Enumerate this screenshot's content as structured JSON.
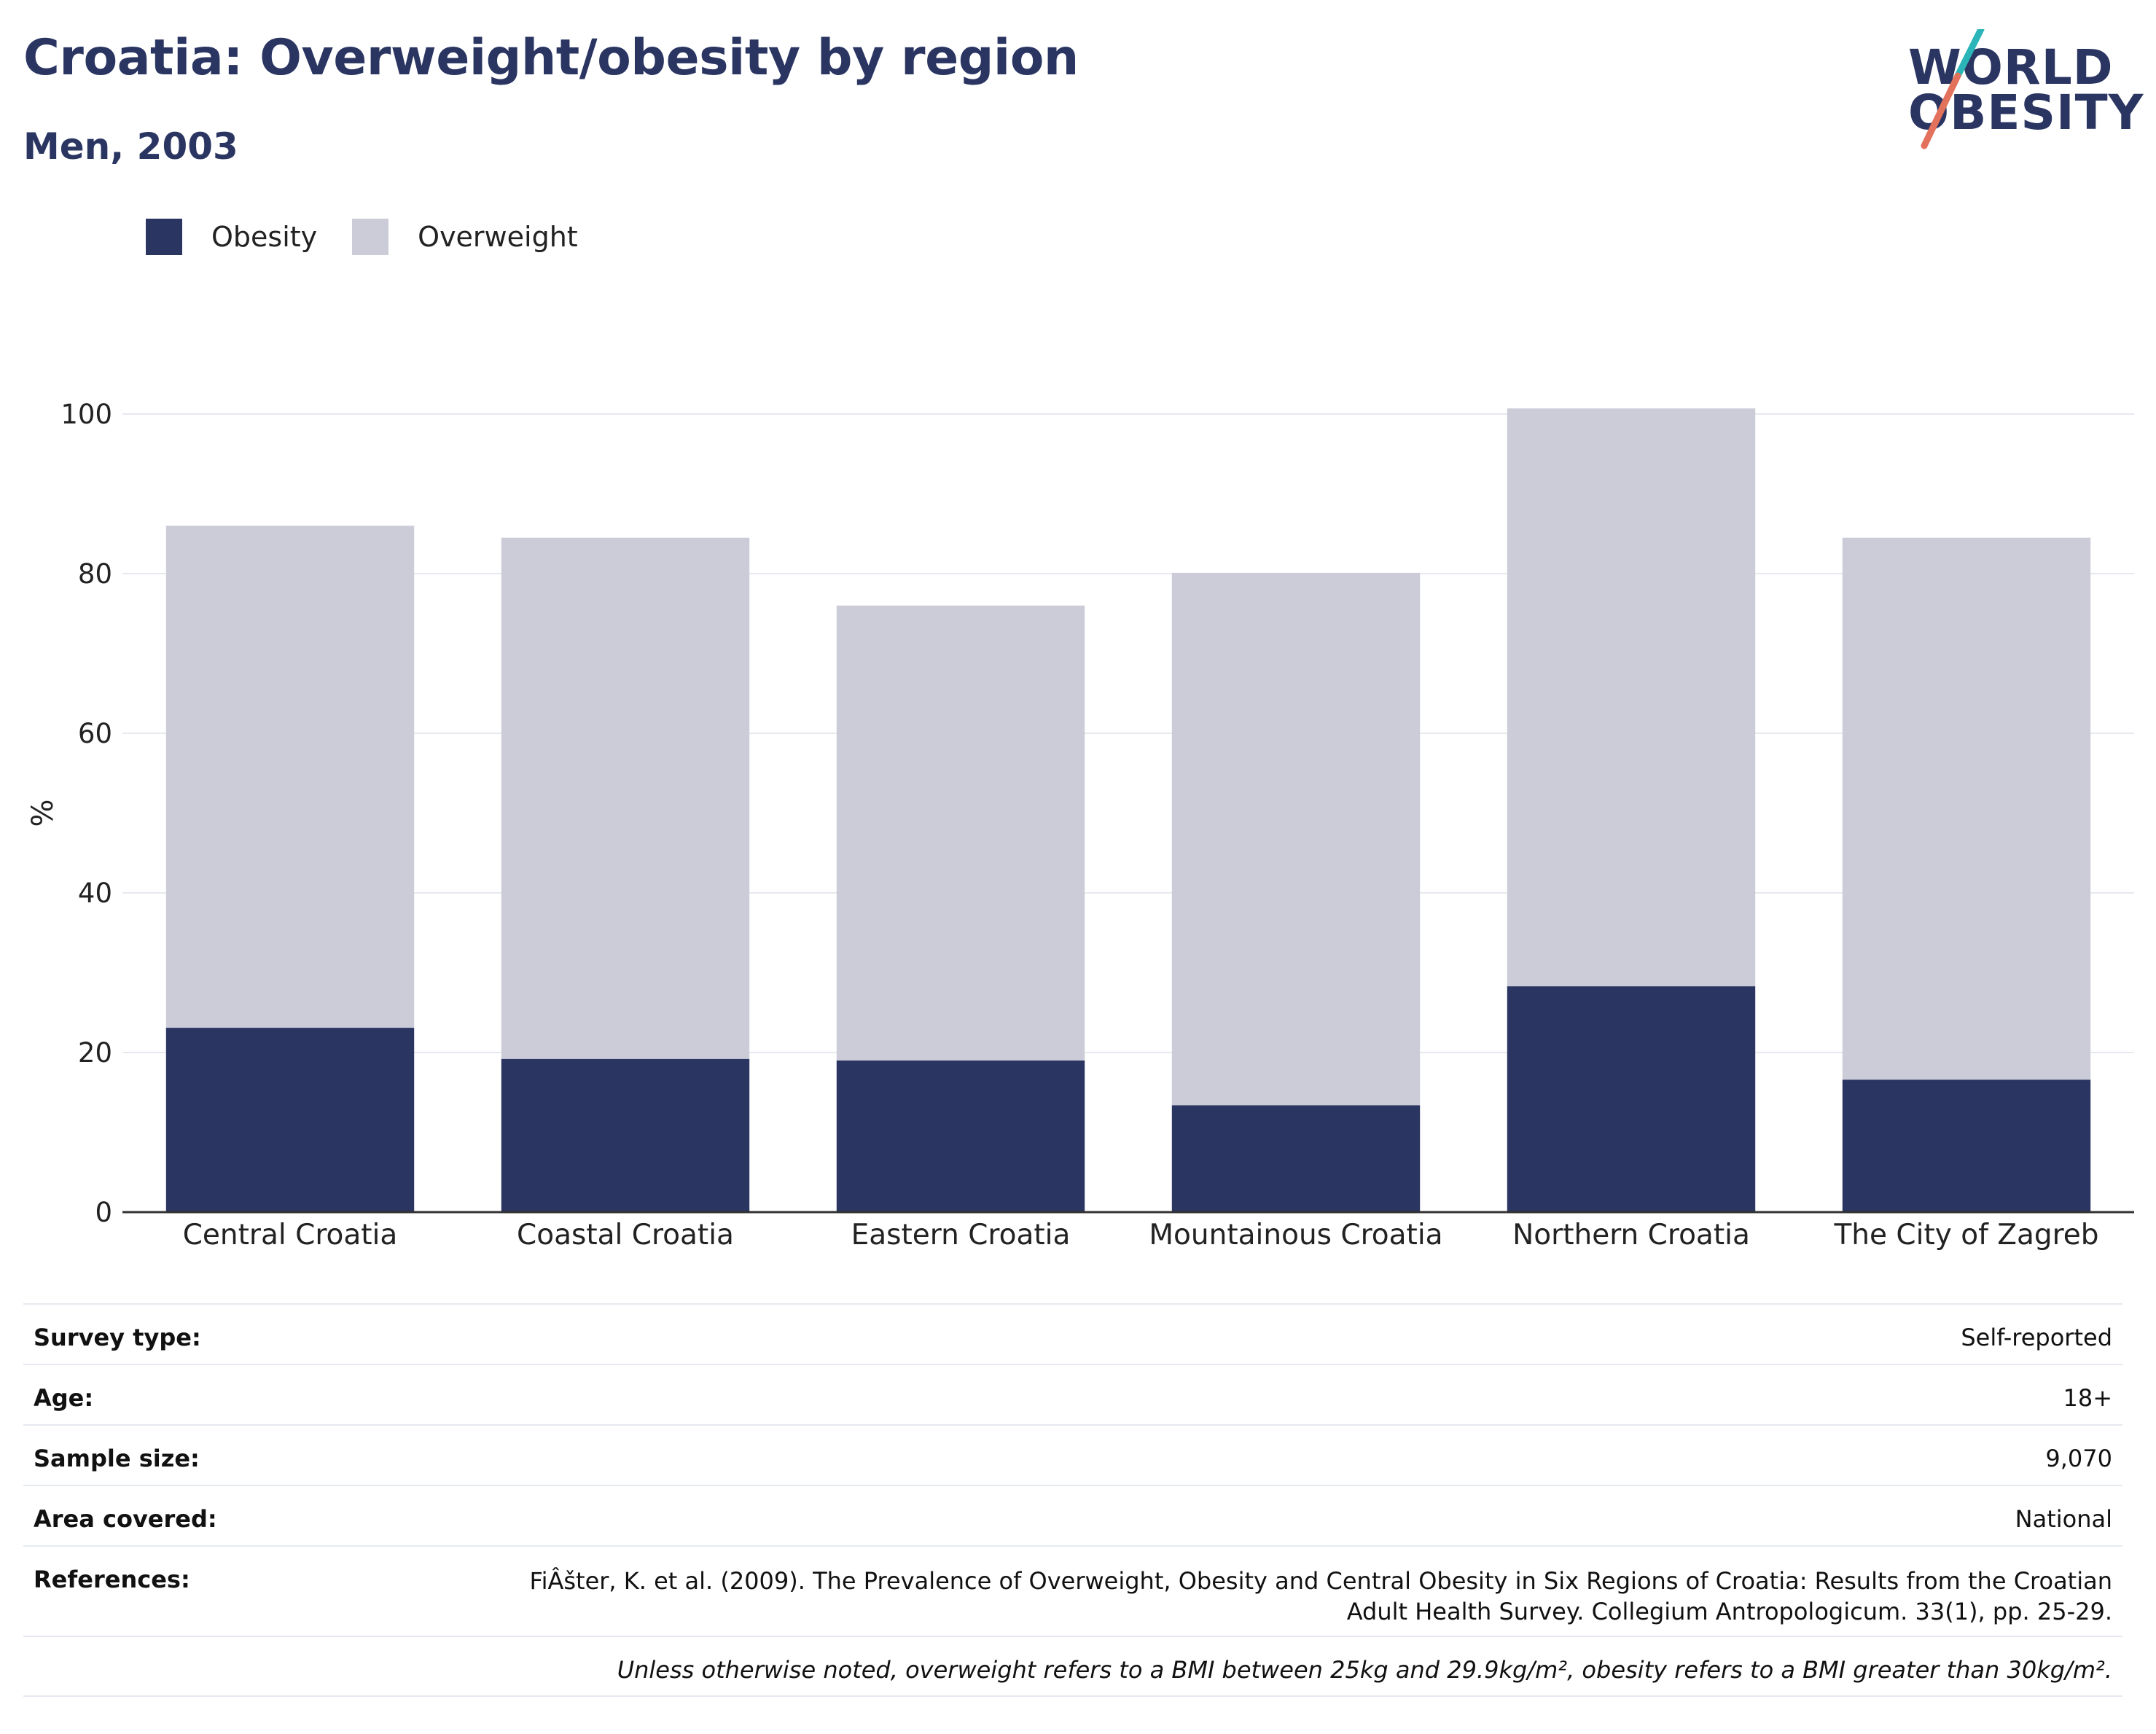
{
  "header": {
    "title": "Croatia: Overweight/obesity by region",
    "subtitle": "Men, 2003"
  },
  "logo": {
    "line1": "WORLD",
    "line2": "OBESITY",
    "colors": {
      "text": "#2a3562",
      "slash_top": "#2bb5b8",
      "slash_bottom": "#e2725b"
    }
  },
  "legend": [
    {
      "label": "Obesity",
      "color": "#2a3562"
    },
    {
      "label": "Overweight",
      "color": "#cbccd8"
    }
  ],
  "chart_data": {
    "type": "bar",
    "stacked": true,
    "categories": [
      "Central Croatia",
      "Coastal Croatia",
      "Eastern Croatia",
      "Mountainous Croatia",
      "Northern Croatia",
      "The City of Zagreb"
    ],
    "series": [
      {
        "name": "Obesity",
        "color": "#2a3562",
        "values": [
          23.1,
          19.2,
          19.0,
          13.4,
          28.3,
          16.6
        ]
      },
      {
        "name": "Overweight",
        "color": "#cbccd8",
        "values": [
          62.9,
          65.3,
          57.0,
          66.7,
          72.4,
          67.9
        ]
      }
    ],
    "ylabel": "%",
    "ylim": [
      0,
      100
    ],
    "yticks": [
      0,
      20,
      40,
      60,
      80,
      100
    ],
    "grid": true,
    "legend_position": "top-left"
  },
  "metadata": [
    {
      "key": "Survey type:",
      "value": "Self-reported"
    },
    {
      "key": "Age:",
      "value": "18+"
    },
    {
      "key": "Sample size:",
      "value": "9,070"
    },
    {
      "key": "Area covered:",
      "value": "National"
    }
  ],
  "references": {
    "key": "References:",
    "line1": "FiÂšter, K. et al. (2009). The Prevalence of Overweight, Obesity and Central Obesity in Six Regions of Croatia: Results from the Croatian",
    "line2": "Adult Health Survey. Collegium Antropologicum. 33(1), pp. 25-29."
  },
  "footnote": "Unless otherwise noted, overweight refers to a BMI between 25kg and 29.9kg/m², obesity refers to a BMI greater than 30kg/m²."
}
